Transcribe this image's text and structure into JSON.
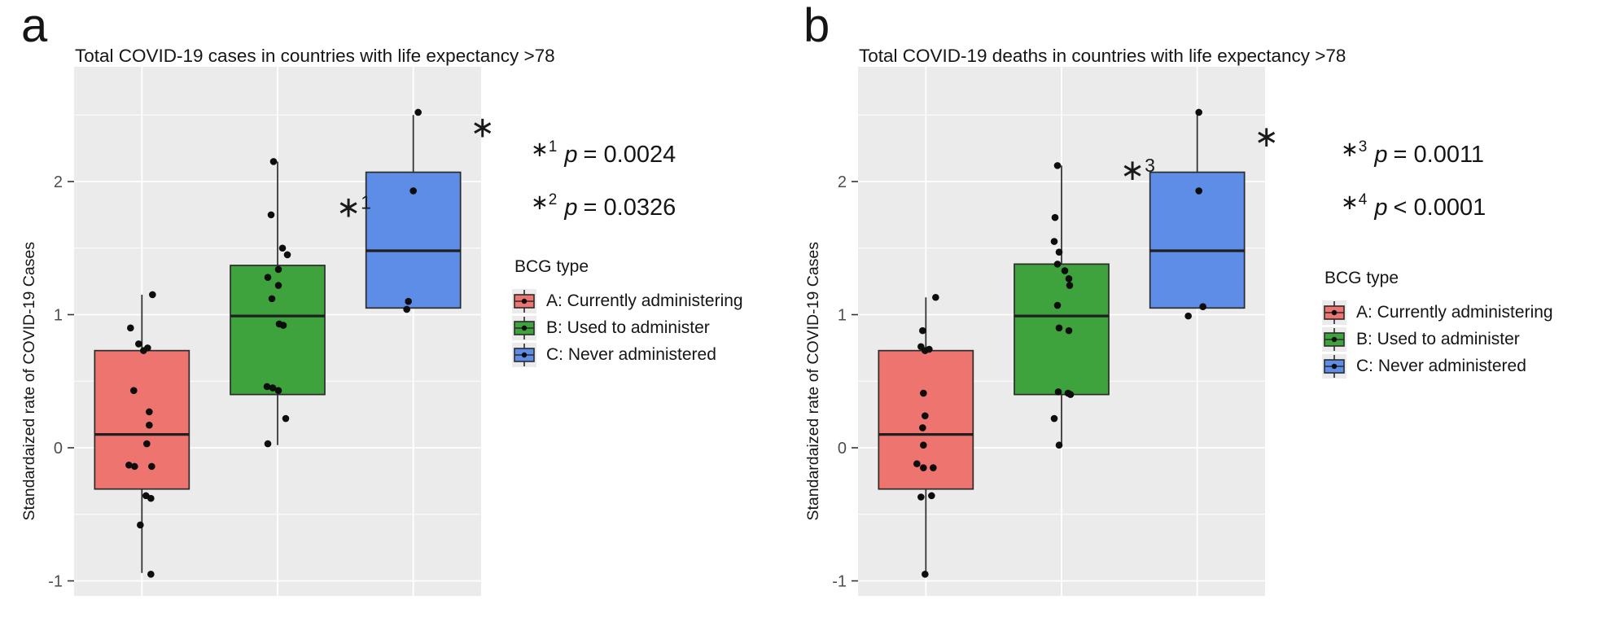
{
  "panels": [
    {
      "letter": "a",
      "title": "Total COVID-19 cases in countries with life expectancy >78",
      "p_values": [
        {
          "marker": "*1",
          "var": "p",
          "rest": "= 0.0024"
        },
        {
          "marker": "*2",
          "var": "p",
          "rest": "= 0.0326"
        }
      ],
      "legend": {
        "title": "BCG type",
        "items": [
          {
            "label": "A: Currently administering",
            "color": "#EE7470"
          },
          {
            "label": "B: Used to administer",
            "color": "#3EA33C"
          },
          {
            "label": "C: Never administered",
            "color": "#5E8DE8"
          }
        ]
      }
    },
    {
      "letter": "b",
      "title": "Total COVID-19 deaths in countries with life expectancy >78",
      "p_values": [
        {
          "marker": "*3",
          "var": "p",
          "rest": "= 0.0011"
        },
        {
          "marker": "*4",
          "var": "p",
          "rest": "< 0.0001"
        }
      ],
      "legend": {
        "title": "BCG type",
        "items": [
          {
            "label": "A: Currently administering",
            "color": "#EE7470"
          },
          {
            "label": "B: Used to administer",
            "color": "#3EA33C"
          },
          {
            "label": "C: Never administered",
            "color": "#5E8DE8"
          }
        ]
      }
    }
  ],
  "chart_data": [
    {
      "type": "boxplot",
      "title": "Total COVID-19 cases in countries with life expectancy >78",
      "ylabel": "Standardaized rate of COVID-19 Cases",
      "ylim": [
        -1.1,
        2.86
      ],
      "yticks": [
        2,
        1,
        0,
        -1
      ],
      "yticks_minor": [
        2.5,
        1.5,
        0.5,
        -0.5
      ],
      "grid": {
        "background": "#EBEBEB",
        "gridline_color": "#FFFFFF",
        "legend_position": "right"
      },
      "categories": [
        "A: Currently administering",
        "B: Used to administer",
        "C: Never administered"
      ],
      "colors": [
        "#EE7470",
        "#3EA33C",
        "#5E8DE8"
      ],
      "boxes": [
        {
          "category": "A: Currently administering",
          "whisker_low": -0.94,
          "q1": -0.31,
          "median": 0.1,
          "q3": 0.73,
          "whisker_high": 1.15
        },
        {
          "category": "B: Used to administer",
          "whisker_low": 0.02,
          "q1": 0.4,
          "median": 0.99,
          "q3": 1.37,
          "whisker_high": 2.15
        },
        {
          "category": "C: Never administered",
          "whisker_low": null,
          "q1": 1.05,
          "median": 1.48,
          "q3": 2.07,
          "whisker_high": 2.5
        }
      ],
      "points": [
        [
          0,
          1.15,
          13
        ],
        [
          0,
          0.9,
          -14
        ],
        [
          0,
          0.78,
          -4
        ],
        [
          0,
          0.75,
          7
        ],
        [
          0,
          0.73,
          2
        ],
        [
          0,
          0.43,
          -10
        ],
        [
          0,
          0.27,
          9
        ],
        [
          0,
          0.17,
          9
        ],
        [
          0,
          0.03,
          6
        ],
        [
          0,
          -0.13,
          -16
        ],
        [
          0,
          -0.14,
          -9
        ],
        [
          0,
          -0.14,
          12
        ],
        [
          0,
          -0.36,
          5
        ],
        [
          0,
          -0.38,
          11
        ],
        [
          0,
          -0.58,
          -2
        ],
        [
          0,
          -0.95,
          11
        ],
        [
          1,
          2.15,
          -5
        ],
        [
          1,
          1.75,
          -8
        ],
        [
          1,
          1.5,
          6
        ],
        [
          1,
          1.45,
          12
        ],
        [
          1,
          1.34,
          1
        ],
        [
          1,
          1.28,
          -12
        ],
        [
          1,
          1.22,
          1
        ],
        [
          1,
          1.12,
          -7
        ],
        [
          1,
          0.93,
          2
        ],
        [
          1,
          0.92,
          7
        ],
        [
          1,
          0.46,
          -13
        ],
        [
          1,
          0.45,
          -6
        ],
        [
          1,
          0.43,
          1
        ],
        [
          1,
          0.22,
          10
        ],
        [
          1,
          0.03,
          -12
        ],
        [
          2,
          2.52,
          6
        ],
        [
          2,
          1.93,
          0
        ],
        [
          2,
          1.1,
          -6
        ],
        [
          2,
          1.04,
          -8
        ]
      ],
      "sig_marks": [
        {
          "marker": "*1",
          "group": 1,
          "dx": 72,
          "value": 1.8
        },
        {
          "marker": "*2",
          "group": 2,
          "dx": 70,
          "value": 2.4
        }
      ]
    },
    {
      "type": "boxplot",
      "title": "Total COVID-19 deaths in countries with life expectancy >78",
      "ylabel": "Standardaized rate of COVID-19 Cases",
      "ylim": [
        -1.1,
        2.86
      ],
      "yticks": [
        2,
        1,
        0,
        -1
      ],
      "yticks_minor": [
        2.5,
        1.5,
        0.5,
        -0.5
      ],
      "grid": {
        "background": "#EBEBEB",
        "gridline_color": "#FFFFFF",
        "legend_position": "right"
      },
      "categories": [
        "A: Currently administering",
        "B: Used to administer",
        "C: Never administered"
      ],
      "colors": [
        "#EE7470",
        "#3EA33C",
        "#5E8DE8"
      ],
      "boxes": [
        {
          "category": "A: Currently administering",
          "whisker_low": -0.94,
          "q1": -0.31,
          "median": 0.1,
          "q3": 0.73,
          "whisker_high": 1.13
        },
        {
          "category": "B: Used to administer",
          "whisker_low": 0.02,
          "q1": 0.4,
          "median": 0.99,
          "q3": 1.38,
          "whisker_high": 2.12
        },
        {
          "category": "C: Never administered",
          "whisker_low": null,
          "q1": 1.05,
          "median": 1.48,
          "q3": 2.07,
          "whisker_high": 2.5
        }
      ],
      "points": [
        [
          0,
          1.13,
          12
        ],
        [
          0,
          0.88,
          -4
        ],
        [
          0,
          0.76,
          -6
        ],
        [
          0,
          0.74,
          4
        ],
        [
          0,
          0.73,
          -1
        ],
        [
          0,
          0.41,
          -3
        ],
        [
          0,
          0.24,
          -1
        ],
        [
          0,
          0.15,
          -4
        ],
        [
          0,
          0.02,
          -3
        ],
        [
          0,
          -0.12,
          -11
        ],
        [
          0,
          -0.15,
          -3
        ],
        [
          0,
          -0.15,
          9
        ],
        [
          0,
          -0.37,
          -6
        ],
        [
          0,
          -0.36,
          7
        ],
        [
          0,
          -0.95,
          -1
        ],
        [
          1,
          2.12,
          -5
        ],
        [
          1,
          1.73,
          -8
        ],
        [
          1,
          1.55,
          -9
        ],
        [
          1,
          1.47,
          -3
        ],
        [
          1,
          1.38,
          -5
        ],
        [
          1,
          1.33,
          4
        ],
        [
          1,
          1.27,
          9
        ],
        [
          1,
          1.22,
          10
        ],
        [
          1,
          1.07,
          -5
        ],
        [
          1,
          0.9,
          -3
        ],
        [
          1,
          0.88,
          9
        ],
        [
          1,
          0.42,
          -4
        ],
        [
          1,
          0.41,
          8
        ],
        [
          1,
          0.4,
          11
        ],
        [
          1,
          0.22,
          -9
        ],
        [
          1,
          0.02,
          -3
        ],
        [
          2,
          2.52,
          2
        ],
        [
          2,
          1.93,
          2
        ],
        [
          2,
          1.06,
          7
        ],
        [
          2,
          0.99,
          -11
        ]
      ],
      "sig_marks": [
        {
          "marker": "*3",
          "group": 1,
          "dx": 72,
          "value": 2.08
        },
        {
          "marker": "*4",
          "group": 2,
          "dx": 70,
          "value": 2.33
        }
      ]
    }
  ]
}
